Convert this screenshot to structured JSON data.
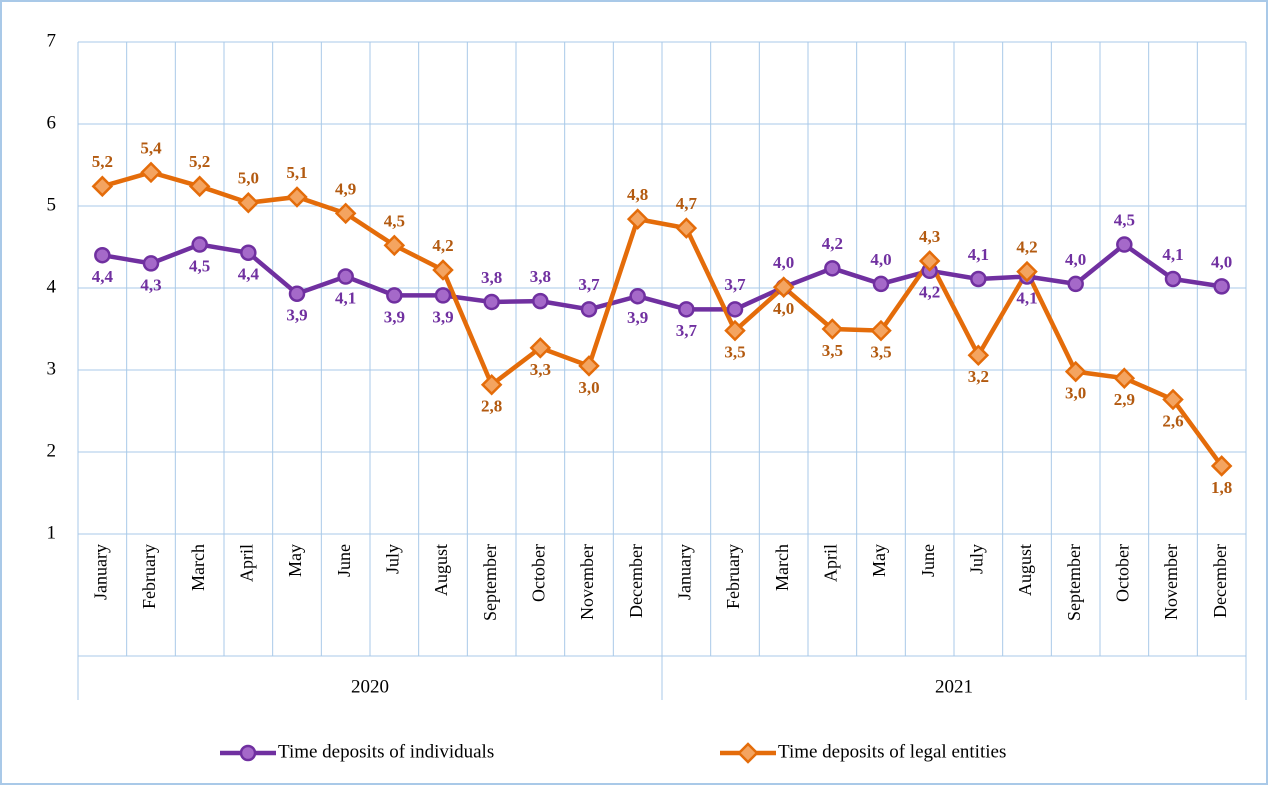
{
  "chart_data": {
    "type": "line",
    "categories": [
      "January",
      "February",
      "March",
      "April",
      "May",
      "June",
      "July",
      "August",
      "September",
      "October",
      "November",
      "December",
      "January",
      "February",
      "March",
      "April",
      "May",
      "June",
      "July",
      "August",
      "September",
      "October",
      "November",
      "December"
    ],
    "year_groups": [
      "2020",
      "2021"
    ],
    "series": [
      {
        "name": "Time deposits of individuals",
        "color": "#7030a0",
        "label_color": "#7030a0",
        "marker": "circle",
        "values": [
          4.4,
          4.3,
          4.53,
          4.43,
          3.93,
          4.14,
          3.91,
          3.91,
          3.83,
          3.84,
          3.74,
          3.9,
          3.74,
          3.74,
          4.01,
          4.24,
          4.05,
          4.21,
          4.11,
          4.14,
          4.05,
          4.53,
          4.11,
          4.02
        ],
        "value_labels": [
          "4,4",
          "4,3",
          "4,5",
          "4,4",
          "3,9",
          "4,1",
          "3,9",
          "3,9",
          "3,8",
          "3,8",
          "3,7",
          "3,9",
          "3,7",
          "3,7",
          "4,0",
          "4,2",
          "4,0",
          "4,2",
          "4,1",
          "4,1",
          "4,0",
          "4,5",
          "4,1",
          "4,0"
        ]
      },
      {
        "name": "Time deposits of legal entities",
        "color": "#e46c0a",
        "label_color": "#b35a10",
        "marker": "diamond",
        "values": [
          5.24,
          5.41,
          5.24,
          5.04,
          5.11,
          4.91,
          4.52,
          4.22,
          2.82,
          3.27,
          3.05,
          4.84,
          4.73,
          3.48,
          4.01,
          3.5,
          3.48,
          4.33,
          3.18,
          4.2,
          2.98,
          2.9,
          2.64,
          1.83
        ],
        "value_labels": [
          "5,2",
          "5,4",
          "5,2",
          "5,0",
          "5,1",
          "4,9",
          "4,5",
          "4,2",
          "2,8",
          "3,3",
          "3,0",
          "4,8",
          "4,7",
          "3,5",
          "4,0",
          "3,5",
          "3,5",
          "4,3",
          "3,2",
          "4,2",
          "3,0",
          "2,9",
          "2,6",
          "1,8"
        ]
      }
    ],
    "ylim": [
      1,
      7
    ],
    "yticks": [
      1,
      2,
      3,
      4,
      5,
      6,
      7
    ],
    "grid": true,
    "legend": "bottom"
  }
}
